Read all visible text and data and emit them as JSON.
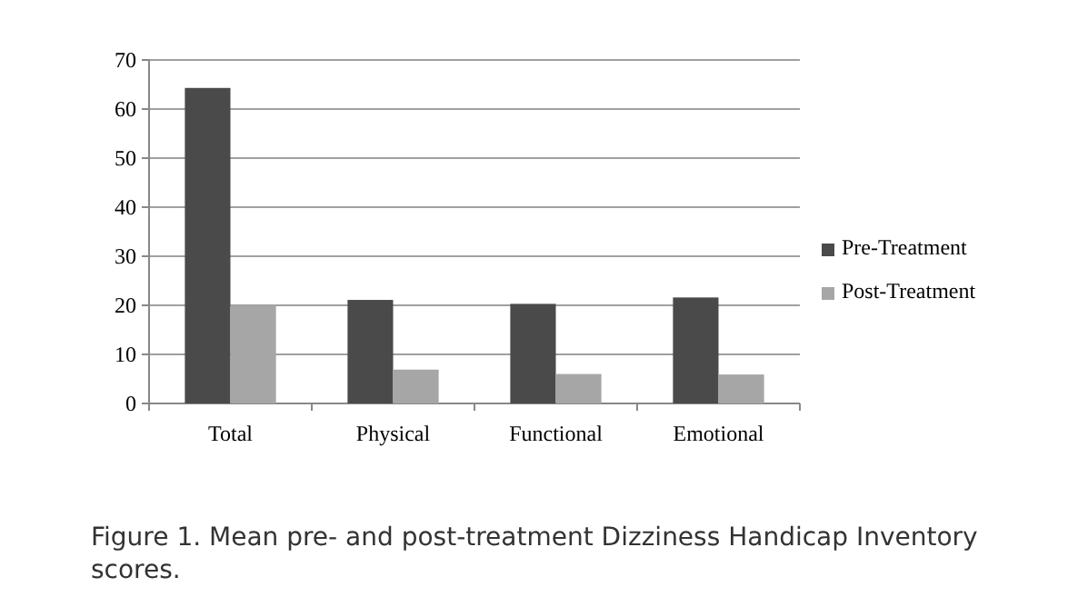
{
  "chart_data": {
    "type": "bar",
    "categories": [
      "Total",
      "Physical",
      "Functional",
      "Emotional"
    ],
    "series": [
      {
        "name": "Pre-Treatment",
        "color": "#4a4a4a",
        "values": [
          64.3,
          21.1,
          20.3,
          21.6
        ]
      },
      {
        "name": "Post-Treatment",
        "color": "#a6a6a6",
        "values": [
          19.9,
          6.9,
          6,
          5.9
        ]
      }
    ],
    "ylim": [
      0,
      70
    ],
    "yticks": [
      0,
      10,
      20,
      30,
      40,
      50,
      60,
      70
    ],
    "grid": "y",
    "legend": "right",
    "annotations": [
      "Figure 1. Mean pre- and post-treatment Dizziness Handicap Inventory scores."
    ]
  }
}
